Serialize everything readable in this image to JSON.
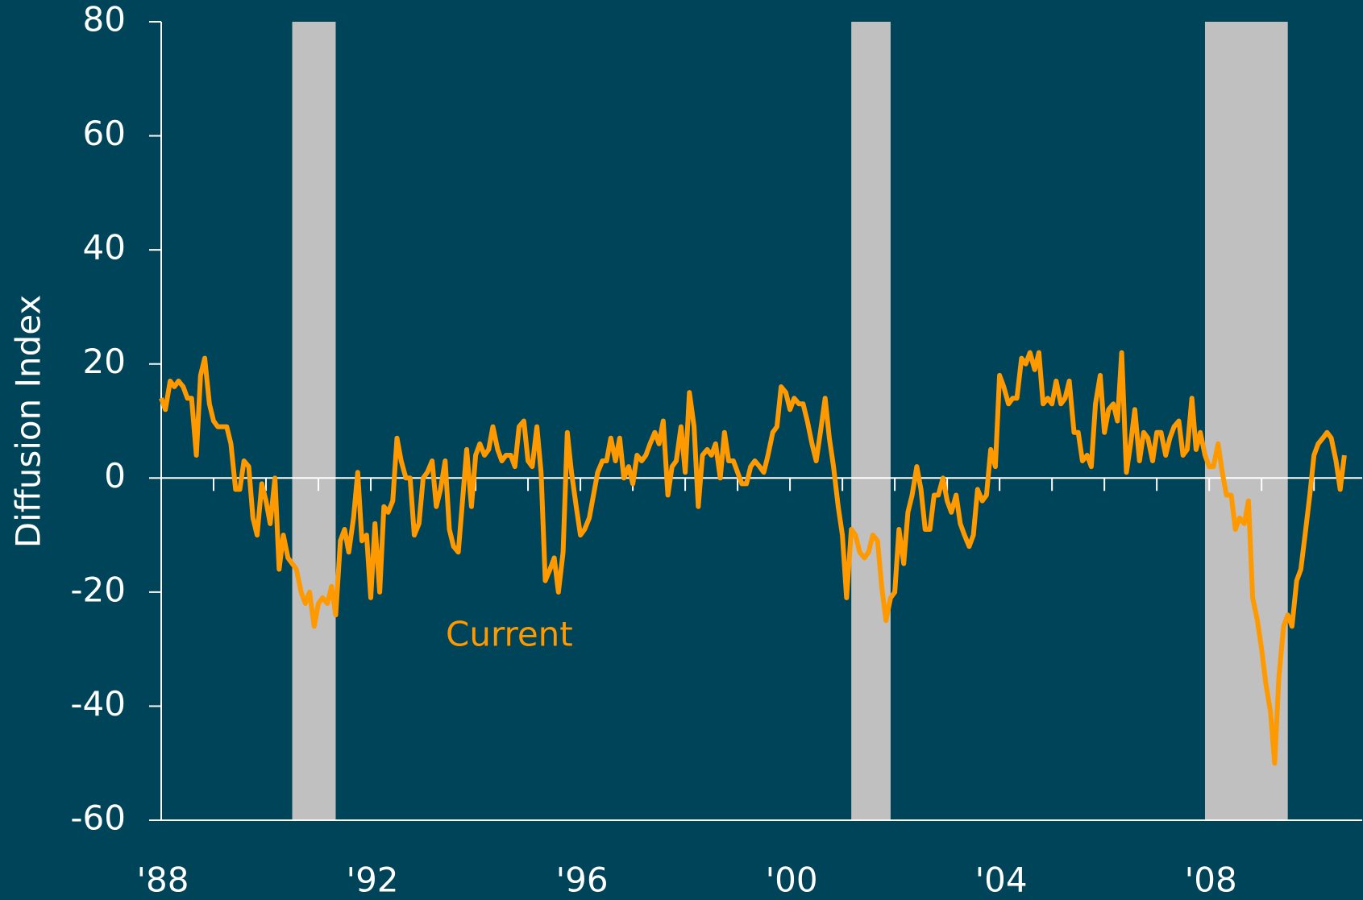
{
  "chart_data": {
    "type": "line",
    "y_label": "Diffusion Index",
    "ylim": [
      -60,
      80
    ],
    "yticks": [
      -60,
      -40,
      -20,
      0,
      20,
      40,
      60,
      80
    ],
    "xlim": [
      1988,
      2010.92
    ],
    "xticks": [
      {
        "value": 1988,
        "label": "'88"
      },
      {
        "value": 1992,
        "label": "'92"
      },
      {
        "value": 1996,
        "label": "'96"
      },
      {
        "value": 2000,
        "label": "'00"
      },
      {
        "value": 2004,
        "label": "'04"
      },
      {
        "value": 2008,
        "label": "'08"
      }
    ],
    "minor_xticks": [
      1989,
      1990,
      1991,
      1992,
      1993,
      1994,
      1995,
      1996,
      1997,
      1998,
      1999,
      2000,
      2001,
      2002,
      2003,
      2004,
      2005,
      2006,
      2007,
      2008,
      2009,
      2010
    ],
    "shaded_periods": [
      [
        1990.5,
        1991.33
      ],
      [
        2001.17,
        2001.92
      ],
      [
        2007.92,
        2009.5
      ]
    ],
    "shade_color": "#c0c0c0",
    "series": [
      {
        "name": "Current",
        "color": "#ff9900",
        "x": [
          1988.0,
          1988.08,
          1988.17,
          1988.25,
          1988.33,
          1988.42,
          1988.5,
          1988.58,
          1988.67,
          1988.75,
          1988.83,
          1988.92,
          1989.0,
          1989.08,
          1989.17,
          1989.25,
          1989.33,
          1989.42,
          1989.5,
          1989.58,
          1989.67,
          1989.75,
          1989.83,
          1989.92,
          1990.0,
          1990.08,
          1990.17,
          1990.25,
          1990.33,
          1990.42,
          1990.5,
          1990.58,
          1990.67,
          1990.75,
          1990.83,
          1990.92,
          1991.0,
          1991.08,
          1991.17,
          1991.25,
          1991.33,
          1991.42,
          1991.5,
          1991.58,
          1991.67,
          1991.75,
          1991.83,
          1991.92,
          1992.0,
          1992.08,
          1992.17,
          1992.25,
          1992.33,
          1992.42,
          1992.5,
          1992.58,
          1992.67,
          1992.75,
          1992.83,
          1992.92,
          1993.0,
          1993.08,
          1993.17,
          1993.25,
          1993.33,
          1993.42,
          1993.5,
          1993.58,
          1993.67,
          1993.75,
          1993.83,
          1993.92,
          1994.0,
          1994.08,
          1994.17,
          1994.25,
          1994.33,
          1994.42,
          1994.5,
          1994.58,
          1994.67,
          1994.75,
          1994.83,
          1994.92,
          1995.0,
          1995.08,
          1995.17,
          1995.25,
          1995.33,
          1995.42,
          1995.5,
          1995.58,
          1995.67,
          1995.75,
          1995.83,
          1995.92,
          1996.0,
          1996.08,
          1996.17,
          1996.25,
          1996.33,
          1996.42,
          1996.5,
          1996.58,
          1996.67,
          1996.75,
          1996.83,
          1996.92,
          1997.0,
          1997.08,
          1997.17,
          1997.25,
          1997.33,
          1997.42,
          1997.5,
          1997.58,
          1997.67,
          1997.75,
          1997.83,
          1997.92,
          1998.0,
          1998.08,
          1998.17,
          1998.25,
          1998.33,
          1998.42,
          1998.5,
          1998.58,
          1998.67,
          1998.75,
          1998.83,
          1998.92,
          1999.0,
          1999.08,
          1999.17,
          1999.25,
          1999.33,
          1999.42,
          1999.5,
          1999.58,
          1999.67,
          1999.75,
          1999.83,
          1999.92,
          2000.0,
          2000.08,
          2000.17,
          2000.25,
          2000.33,
          2000.42,
          2000.5,
          2000.58,
          2000.67,
          2000.75,
          2000.83,
          2000.92,
          2001.0,
          2001.08,
          2001.17,
          2001.25,
          2001.33,
          2001.42,
          2001.5,
          2001.58,
          2001.67,
          2001.75,
          2001.83,
          2001.92,
          2002.0,
          2002.08,
          2002.17,
          2002.25,
          2002.33,
          2002.42,
          2002.5,
          2002.58,
          2002.67,
          2002.75,
          2002.83,
          2002.92,
          2003.0,
          2003.08,
          2003.17,
          2003.25,
          2003.33,
          2003.42,
          2003.5,
          2003.58,
          2003.67,
          2003.75,
          2003.83,
          2003.92,
          2004.0,
          2004.08,
          2004.17,
          2004.25,
          2004.33,
          2004.42,
          2004.5,
          2004.58,
          2004.67,
          2004.75,
          2004.83,
          2004.92,
          2005.0,
          2005.08,
          2005.17,
          2005.25,
          2005.33,
          2005.42,
          2005.5,
          2005.58,
          2005.67,
          2005.75,
          2005.83,
          2005.92,
          2006.0,
          2006.08,
          2006.17,
          2006.25,
          2006.33,
          2006.42,
          2006.5,
          2006.58,
          2006.67,
          2006.75,
          2006.83,
          2006.92,
          2007.0,
          2007.08,
          2007.17,
          2007.25,
          2007.33,
          2007.42,
          2007.5,
          2007.58,
          2007.67,
          2007.75,
          2007.83,
          2007.92,
          2008.0,
          2008.08,
          2008.17,
          2008.25,
          2008.33,
          2008.42,
          2008.5,
          2008.58,
          2008.67,
          2008.75,
          2008.83,
          2008.92,
          2009.0,
          2009.08,
          2009.17,
          2009.25,
          2009.33,
          2009.42,
          2009.5,
          2009.58,
          2009.67,
          2009.75,
          2009.83,
          2009.92,
          2010.0,
          2010.08,
          2010.17,
          2010.25,
          2010.33,
          2010.42,
          2010.5,
          2010.58
        ],
        "values": [
          14,
          12,
          17,
          16,
          17,
          16,
          14,
          14,
          4,
          18,
          21,
          13,
          10,
          9,
          9,
          9,
          6,
          -2,
          -2,
          3,
          2,
          -7,
          -10,
          -1,
          -4,
          -8,
          0,
          -16,
          -10,
          -14,
          -15,
          -16,
          -20,
          -22,
          -20,
          -26,
          -22,
          -21,
          -22,
          -19,
          -24,
          -11,
          -9,
          -13,
          -7,
          1,
          -11,
          -10,
          -21,
          -8,
          -20,
          -5,
          -6,
          -4,
          7,
          3,
          0,
          0,
          -10,
          -8,
          0,
          1,
          3,
          -5,
          -2,
          3,
          -9,
          -12,
          -13,
          -4,
          5,
          -5,
          4,
          6,
          4,
          5,
          9,
          5,
          3,
          4,
          4,
          2,
          9,
          10,
          3,
          2,
          9,
          1,
          -18,
          -16,
          -14,
          -20,
          -13,
          8,
          1,
          -5,
          -10,
          -9,
          -7,
          -3,
          1,
          3,
          3,
          7,
          3,
          7,
          0,
          2,
          -1,
          4,
          3,
          4,
          6,
          8,
          6,
          10,
          -3,
          2,
          3,
          9,
          1,
          15,
          9,
          -5,
          4,
          5,
          4,
          6,
          0,
          8,
          3,
          3,
          1,
          -1,
          -1,
          2,
          3,
          2,
          1,
          4,
          8,
          9,
          16,
          15,
          12,
          14,
          13,
          13,
          10,
          6,
          3,
          8,
          14,
          7,
          2,
          -5,
          -10,
          -21,
          -9,
          -10,
          -13,
          -14,
          -13,
          -10,
          -11,
          -19,
          -25,
          -21,
          -20,
          -9,
          -15,
          -6,
          -3,
          2,
          -2,
          -9,
          -9,
          -3,
          -3,
          0,
          -4,
          -6,
          -3,
          -8,
          -10,
          -12,
          -10,
          -2,
          -4,
          -3,
          5,
          2,
          18,
          16,
          13,
          14,
          14,
          21,
          20,
          22,
          19,
          22,
          13,
          14,
          13,
          17,
          13,
          14,
          17,
          8,
          8,
          3,
          4,
          2,
          13,
          18,
          8,
          12,
          13,
          10,
          22,
          1,
          6,
          12,
          3,
          8,
          7,
          3,
          8,
          8,
          4,
          7,
          9,
          10,
          4,
          5,
          14,
          5,
          8,
          4,
          2,
          2,
          6,
          1,
          -3,
          -3,
          -9,
          -7,
          -8,
          -4,
          -21,
          -25,
          -30,
          -36,
          -41,
          -50,
          -35,
          -26,
          -24,
          -26,
          -18,
          -16,
          -10,
          -3,
          4,
          6,
          7,
          8,
          7,
          3,
          -2,
          4
        ]
      }
    ]
  }
}
